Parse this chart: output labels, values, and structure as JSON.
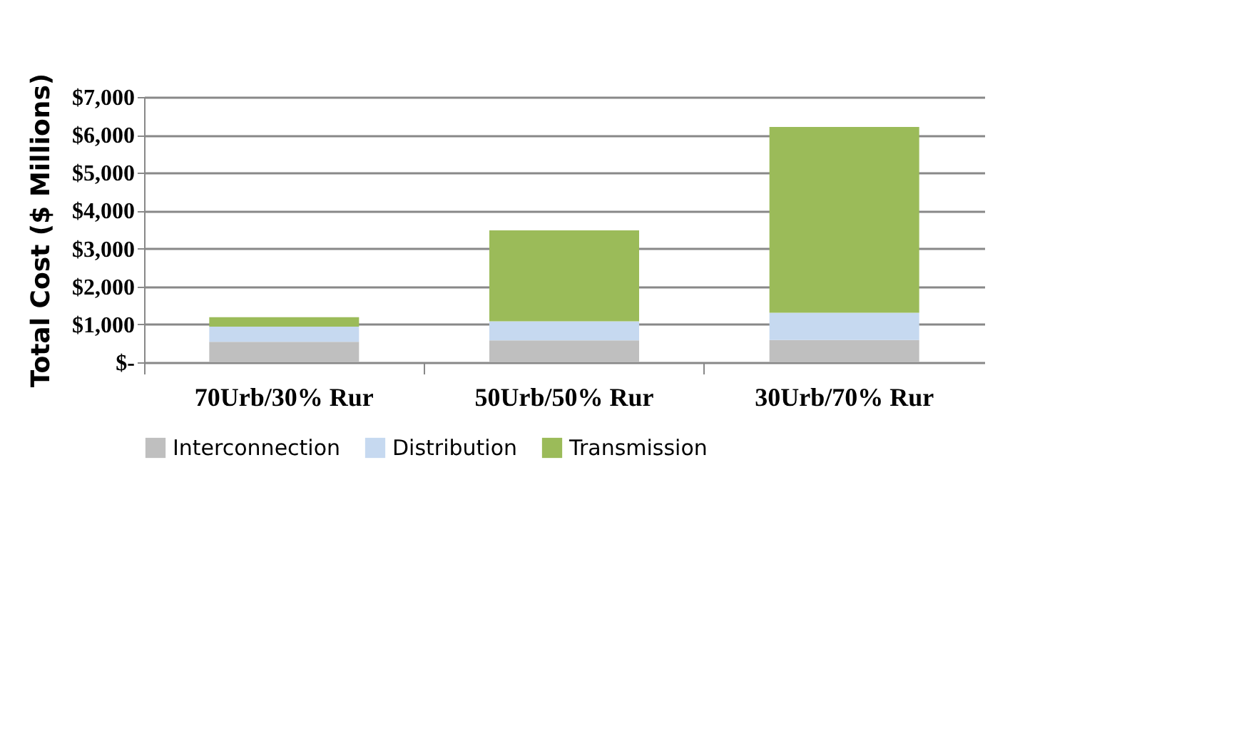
{
  "chart_data": {
    "type": "bar",
    "stacked": true,
    "ylabel": "Total Cost ($ Millions)",
    "categories": [
      "70Urb/30% Rur",
      "50Urb/50% Rur",
      "30Urb/70% Rur"
    ],
    "series": [
      {
        "name": "Interconnection",
        "color": "#bfbfbf",
        "values": [
          540,
          580,
          590
        ]
      },
      {
        "name": "Distribution",
        "color": "#c6d9f0",
        "values": [
          400,
          500,
          720
        ]
      },
      {
        "name": "Transmission",
        "color": "#9bbb59",
        "values": [
          250,
          2400,
          4900
        ]
      }
    ],
    "ylim": [
      0,
      7000
    ],
    "yticks": [
      {
        "value": 0,
        "label": "$-"
      },
      {
        "value": 1000,
        "label": "$1,000"
      },
      {
        "value": 2000,
        "label": "$2,000"
      },
      {
        "value": 3000,
        "label": "$3,000"
      },
      {
        "value": 4000,
        "label": "$4,000"
      },
      {
        "value": 5000,
        "label": "$5,000"
      },
      {
        "value": 6000,
        "label": "$6,000"
      },
      {
        "value": 7000,
        "label": "$7,000"
      }
    ],
    "grid": "y",
    "legend": "bottom"
  }
}
